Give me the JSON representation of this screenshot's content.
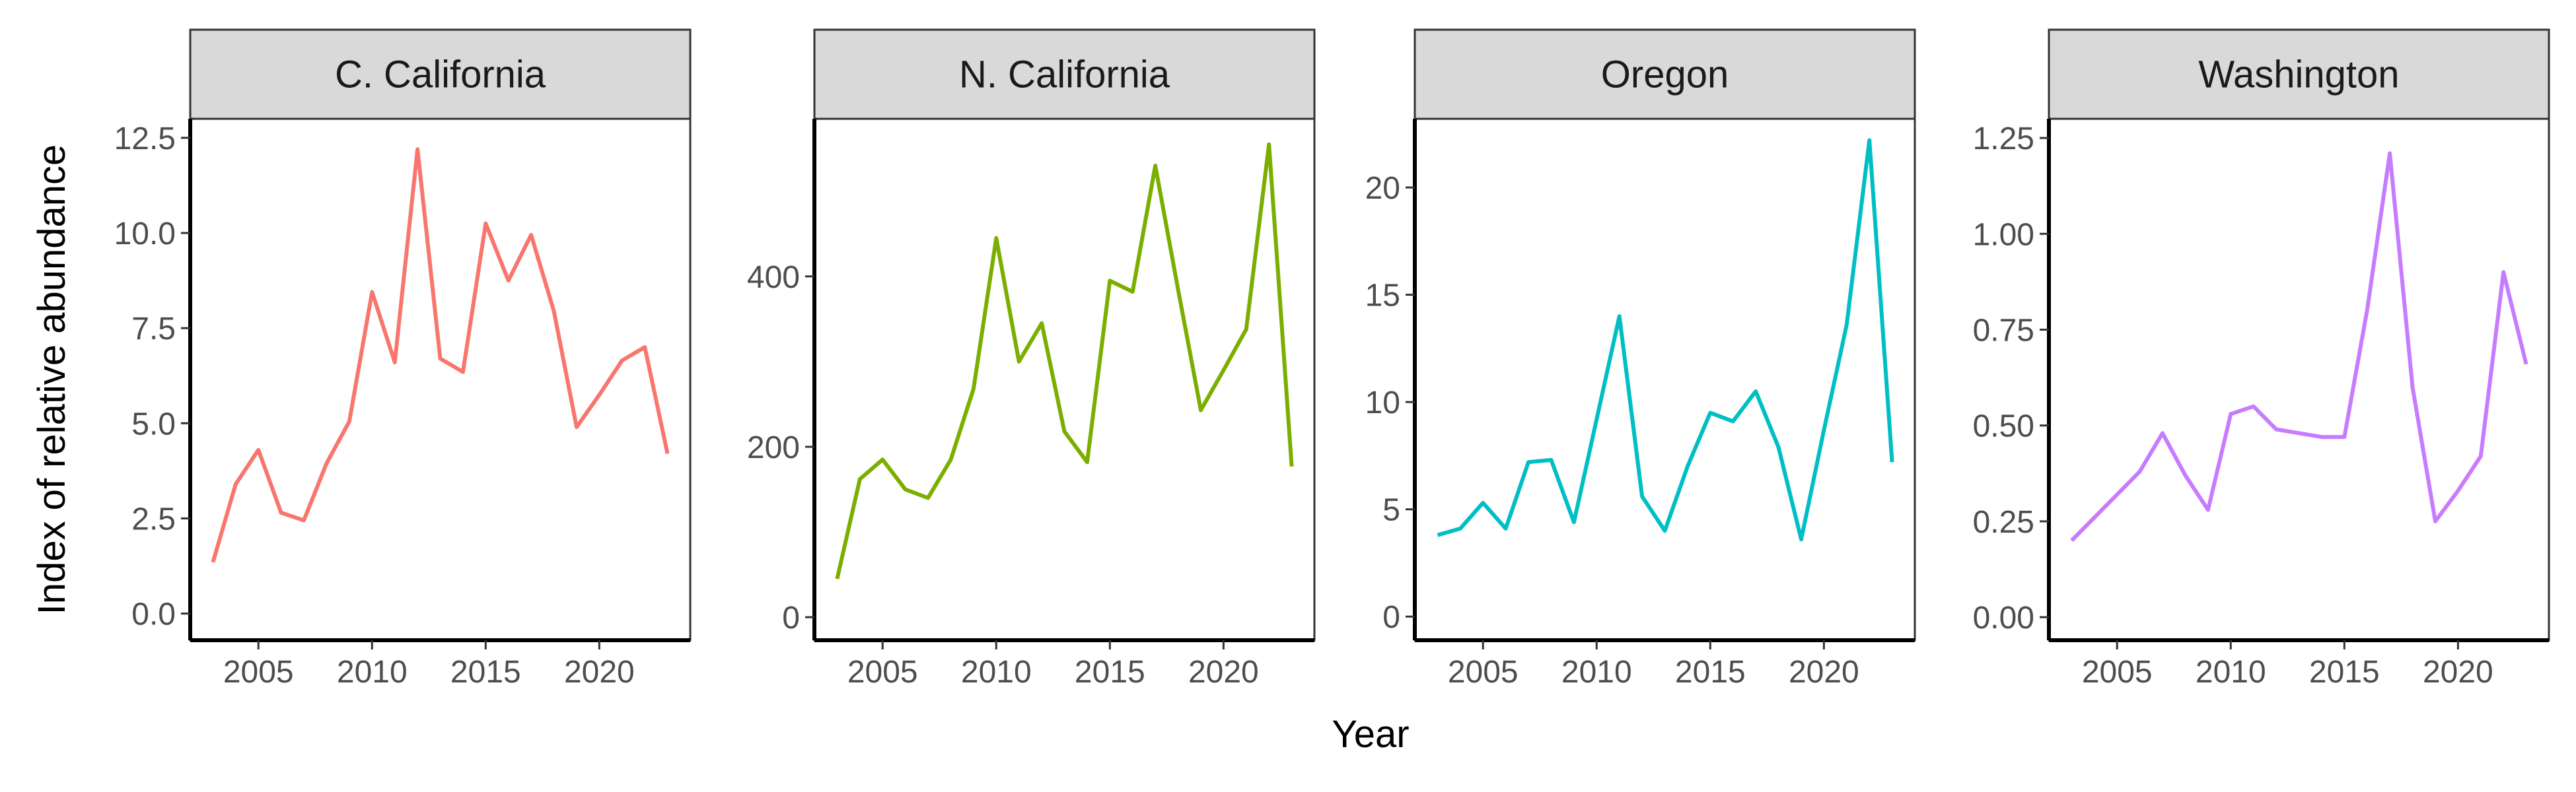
{
  "chart_data": {
    "type": "line",
    "xlabel": "Year",
    "ylabel": "Index of relative abundance",
    "legend": "none",
    "grid": false,
    "x": [
      2003,
      2004,
      2005,
      2006,
      2007,
      2008,
      2009,
      2010,
      2011,
      2012,
      2013,
      2014,
      2015,
      2016,
      2017,
      2018,
      2019,
      2020,
      2021,
      2022,
      2023
    ],
    "panels": [
      {
        "title": "C. California",
        "color": "#F8766D",
        "xlim": [
          2002,
          2024
        ],
        "ylim": [
          -0.7,
          13.0
        ],
        "yticks": [
          0.0,
          2.5,
          5.0,
          7.5,
          10.0,
          12.5
        ],
        "yticklabels": [
          "0.0",
          "2.5",
          "5.0",
          "7.5",
          "10.0",
          "12.5"
        ],
        "xticks": [
          2005,
          2010,
          2015,
          2020
        ],
        "values": [
          1.35,
          3.4,
          4.3,
          2.65,
          2.45,
          3.95,
          5.05,
          8.45,
          6.6,
          12.2,
          6.7,
          6.35,
          10.25,
          8.75,
          9.95,
          7.95,
          4.9,
          5.75,
          6.65,
          7.0,
          4.2
        ]
      },
      {
        "title": "N. California",
        "color": "#7CAE00",
        "xlim": [
          2002,
          2024
        ],
        "ylim": [
          -27,
          585
        ],
        "yticks": [
          0,
          200,
          400
        ],
        "yticklabels": [
          "0",
          "200",
          "400"
        ],
        "xticks": [
          2005,
          2010,
          2015,
          2020
        ],
        "values": [
          45,
          162,
          185,
          150,
          140,
          185,
          268,
          445,
          300,
          345,
          218,
          182,
          395,
          382,
          530,
          385,
          243,
          290,
          338,
          555,
          177
        ]
      },
      {
        "title": "Oregon",
        "color": "#00BFC4",
        "xlim": [
          2002,
          2024
        ],
        "ylim": [
          -1.1,
          23.2
        ],
        "yticks": [
          0,
          5,
          10,
          15,
          20
        ],
        "yticklabels": [
          "0",
          "5",
          "10",
          "15",
          "20"
        ],
        "xticks": [
          2005,
          2010,
          2015,
          2020
        ],
        "values": [
          3.8,
          4.1,
          5.3,
          4.1,
          7.2,
          7.3,
          4.4,
          9.2,
          14.0,
          5.6,
          4.0,
          7.0,
          9.5,
          9.1,
          10.5,
          7.9,
          3.6,
          8.7,
          13.6,
          22.2,
          7.2
        ]
      },
      {
        "title": "Washington",
        "color": "#C77CFF",
        "xlim": [
          2002,
          2024
        ],
        "ylim": [
          -0.06,
          1.3
        ],
        "yticks": [
          0.0,
          0.25,
          0.5,
          0.75,
          1.0,
          1.25
        ],
        "yticklabels": [
          "0.00",
          "0.25",
          "0.50",
          "0.75",
          "1.00",
          "1.25"
        ],
        "xticks": [
          2005,
          2010,
          2015,
          2020
        ],
        "values": [
          0.2,
          0.26,
          0.32,
          0.38,
          0.48,
          0.37,
          0.28,
          0.53,
          0.55,
          0.49,
          0.48,
          0.47,
          0.47,
          0.8,
          1.21,
          0.6,
          0.25,
          0.33,
          0.42,
          0.9,
          0.66
        ]
      }
    ]
  }
}
